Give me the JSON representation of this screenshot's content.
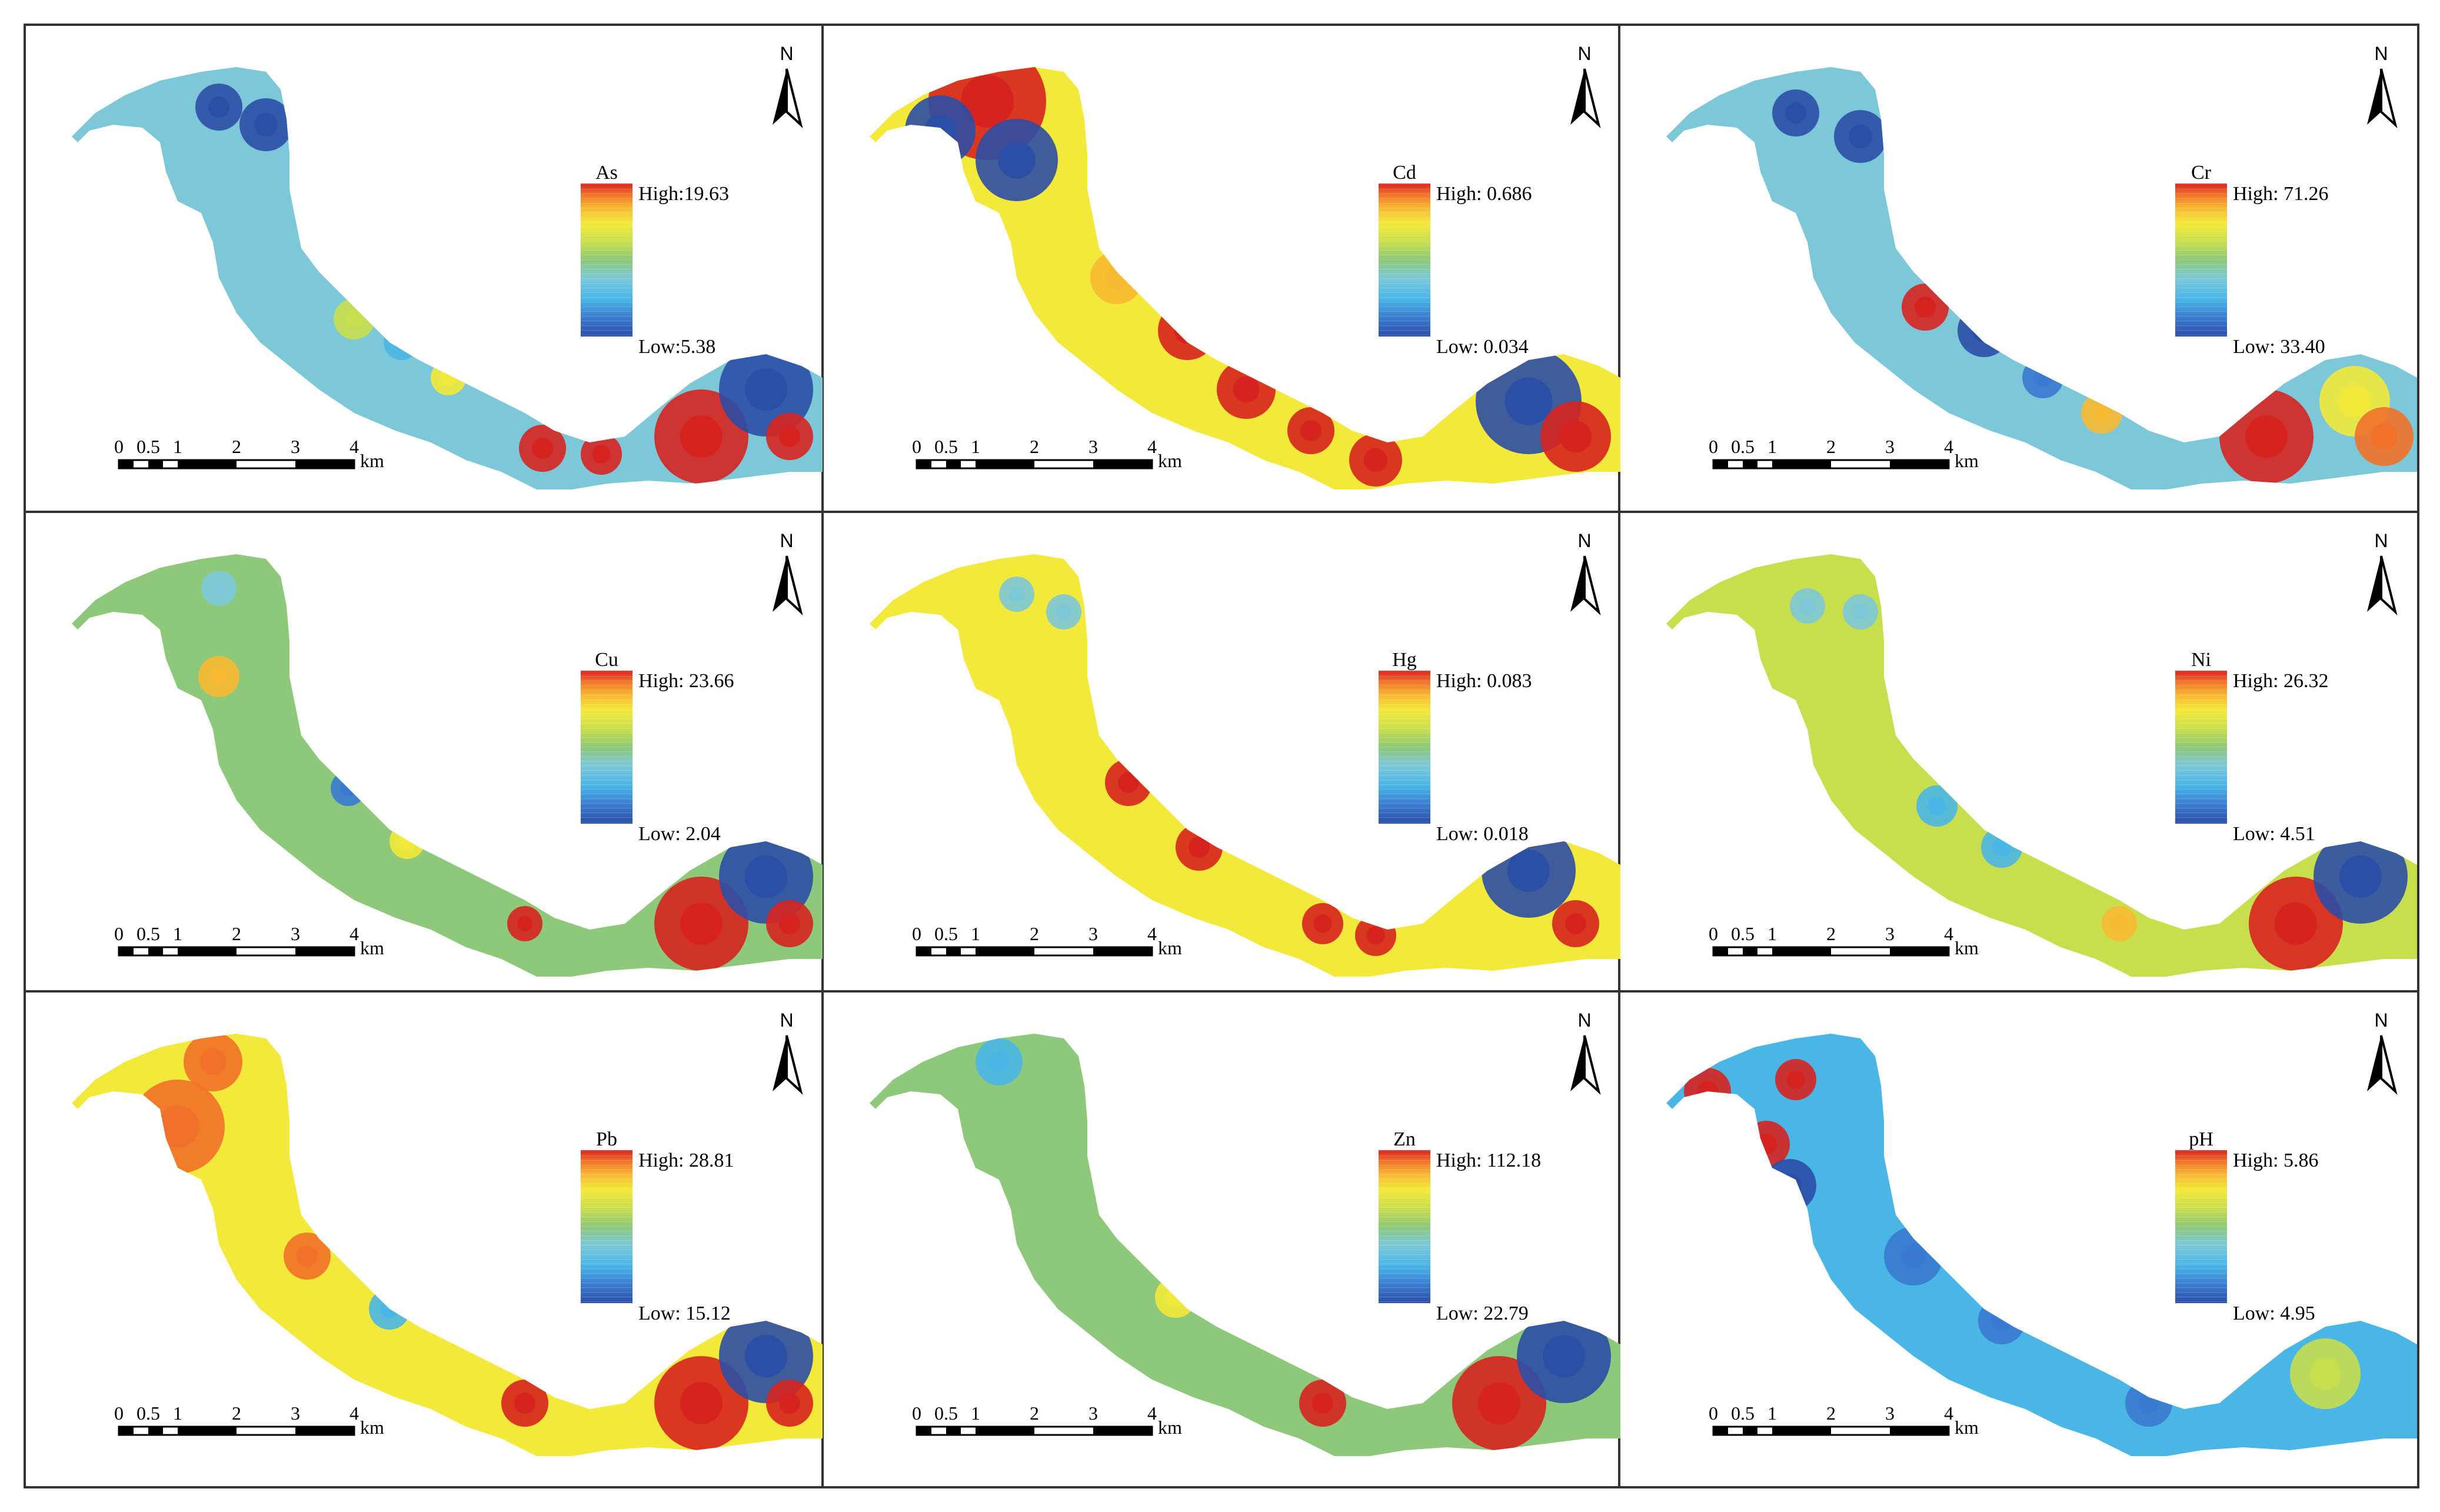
{
  "panels": [
    {
      "element": "As",
      "high_label": "High:19.63",
      "low_label": "Low:5.38",
      "high": 19.63,
      "low": 5.38,
      "north": "N",
      "scale_ticks": [
        "0",
        "0.5",
        "1",
        "2",
        "3",
        "4"
      ],
      "scale_unit": "km"
    },
    {
      "element": "Cd",
      "high_label": "High: 0.686",
      "low_label": "Low: 0.034",
      "high": 0.686,
      "low": 0.034,
      "north": "N",
      "scale_ticks": [
        "0",
        "0.5",
        "1",
        "2",
        "3",
        "4"
      ],
      "scale_unit": "km"
    },
    {
      "element": "Cr",
      "high_label": "High: 71.26",
      "low_label": "Low: 33.40",
      "high": 71.26,
      "low": 33.4,
      "north": "N",
      "scale_ticks": [
        "0",
        "0.5",
        "1",
        "2",
        "3",
        "4"
      ],
      "scale_unit": "km"
    },
    {
      "element": "Cu",
      "high_label": "High: 23.66",
      "low_label": "Low: 2.04",
      "high": 23.66,
      "low": 2.04,
      "north": "N",
      "scale_ticks": [
        "0",
        "0.5",
        "1",
        "2",
        "3",
        "4"
      ],
      "scale_unit": "km"
    },
    {
      "element": "Hg",
      "high_label": "High: 0.083",
      "low_label": "Low: 0.018",
      "high": 0.083,
      "low": 0.018,
      "north": "N",
      "scale_ticks": [
        "0",
        "0.5",
        "1",
        "2",
        "3",
        "4"
      ],
      "scale_unit": "km"
    },
    {
      "element": "Ni",
      "high_label": "High: 26.32",
      "low_label": "Low: 4.51",
      "high": 26.32,
      "low": 4.51,
      "north": "N",
      "scale_ticks": [
        "0",
        "0.5",
        "1",
        "2",
        "3",
        "4"
      ],
      "scale_unit": "km"
    },
    {
      "element": "Pb",
      "high_label": "High: 28.81",
      "low_label": "Low: 15.12",
      "high": 28.81,
      "low": 15.12,
      "north": "N",
      "scale_ticks": [
        "0",
        "0.5",
        "1",
        "2",
        "3",
        "4"
      ],
      "scale_unit": "km"
    },
    {
      "element": "Zn",
      "high_label": "High: 112.18",
      "low_label": "Low: 22.79",
      "high": 112.18,
      "low": 22.79,
      "north": "N",
      "scale_ticks": [
        "0",
        "0.5",
        "1",
        "2",
        "3",
        "4"
      ],
      "scale_unit": "km"
    },
    {
      "element": "pH",
      "high_label": "High: 5.86",
      "low_label": "Low: 4.95",
      "high": 5.86,
      "low": 4.95,
      "north": "N",
      "scale_ticks": [
        "0",
        "0.5",
        "1",
        "2",
        "3",
        "4"
      ],
      "scale_unit": "km"
    }
  ],
  "colors": {
    "ramp": [
      "#2b4ea6",
      "#3a7ad0",
      "#4ab6e6",
      "#7cc8d8",
      "#8ec87a",
      "#c8de4c",
      "#f3e93a",
      "#f7b932",
      "#f1712a",
      "#d7231f"
    ],
    "frame": "#333333"
  }
}
